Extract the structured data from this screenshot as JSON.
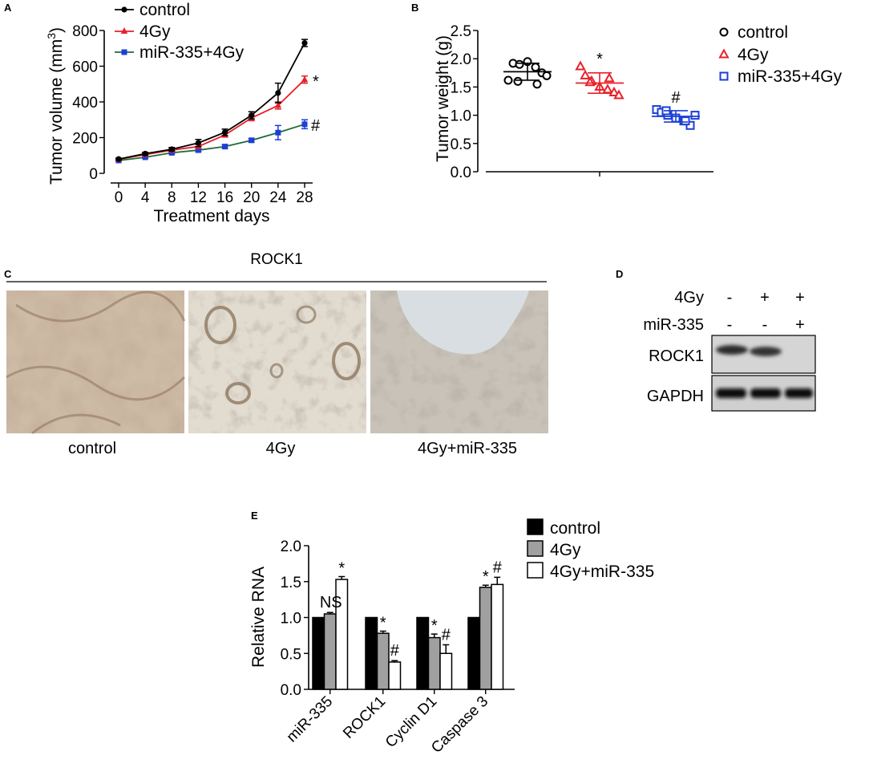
{
  "panels": {
    "A": {
      "label": "A"
    },
    "B": {
      "label": "B"
    },
    "C": {
      "label": "C",
      "title": "ROCK1",
      "images": [
        {
          "caption": "control"
        },
        {
          "caption": "4Gy"
        },
        {
          "caption": "4Gy+miR-335"
        }
      ]
    },
    "D": {
      "label": "D",
      "rows": [
        {
          "label": "4Gy",
          "signs": [
            "-",
            "+",
            "+"
          ]
        },
        {
          "label": "miR-335",
          "signs": [
            "-",
            "-",
            "+"
          ]
        }
      ],
      "bands": [
        {
          "label": "ROCK1",
          "intensity": [
            0.9,
            0.85,
            0.0
          ]
        },
        {
          "label": "GAPDH",
          "intensity": [
            1.0,
            1.0,
            1.0
          ]
        }
      ]
    },
    "E": {
      "label": "E"
    }
  },
  "colors": {
    "control": "#000000",
    "4Gy": "#e8202a",
    "mir4gy": "#1c3fd6",
    "bar_4gy": "#a0a0a0",
    "line_green": "#1e6b3a"
  },
  "chart_data": [
    {
      "id": "A",
      "type": "line",
      "xlabel": "Treatment days",
      "ylabel": "Tumor volume (mm³)",
      "ylabel_main": "Tumor volume (mm",
      "ylabel_sup": "3",
      "ylabel_close": ")",
      "x": [
        0,
        4,
        8,
        12,
        16,
        20,
        24,
        28
      ],
      "xticks": [
        "0",
        "4",
        "8",
        "12",
        "16",
        "20",
        "24",
        "28"
      ],
      "yticks": [
        "0",
        "200",
        "400",
        "600",
        "800"
      ],
      "ylim": [
        0,
        800
      ],
      "legend_position": "top-left",
      "series": [
        {
          "name": "control",
          "values": [
            80,
            110,
            135,
            170,
            230,
            325,
            450,
            730
          ],
          "err": [
            5,
            8,
            10,
            20,
            18,
            20,
            55,
            20
          ]
        },
        {
          "name": "4Gy",
          "values": [
            78,
            105,
            130,
            150,
            215,
            310,
            380,
            525
          ],
          "err": [
            5,
            6,
            8,
            10,
            12,
            15,
            20,
            20
          ]
        },
        {
          "name": "miR-335+4Gy",
          "values": [
            72,
            90,
            115,
            130,
            150,
            185,
            228,
            275
          ],
          "err": [
            4,
            5,
            6,
            8,
            10,
            10,
            40,
            25
          ]
        }
      ],
      "annotations": [
        {
          "text": "*",
          "series": "4Gy"
        },
        {
          "text": "#",
          "series": "miR-335+4Gy"
        }
      ]
    },
    {
      "id": "B",
      "type": "scatter",
      "ylabel": "Tumor weight (g)",
      "yticks": [
        "0.0",
        "0.5",
        "1.0",
        "1.5",
        "2.0",
        "2.5"
      ],
      "ylim": [
        0,
        2.5
      ],
      "legend_position": "right",
      "series": [
        {
          "name": "control",
          "points": [
            1.62,
            1.92,
            1.9,
            1.95,
            1.85,
            1.75,
            1.7,
            1.6,
            1.55
          ],
          "mean": 1.77,
          "sd": 0.15
        },
        {
          "name": "4Gy",
          "points": [
            1.86,
            1.7,
            1.6,
            1.5,
            1.45,
            1.4,
            1.35,
            1.58,
            1.65
          ],
          "mean": 1.57,
          "sd": 0.18
        },
        {
          "name": "miR-335+4Gy",
          "points": [
            1.1,
            1.05,
            1.0,
            0.95,
            0.9,
            0.82,
            1.0,
            1.08,
            0.9
          ],
          "mean": 0.98,
          "sd": 0.1
        }
      ],
      "annotations": [
        {
          "text": "*",
          "series": "4Gy"
        },
        {
          "text": "#",
          "series": "miR-335+4Gy"
        }
      ]
    },
    {
      "id": "E",
      "type": "bar",
      "ylabel": "Relative RNA",
      "categories": [
        "miR-335",
        "ROCK1",
        "Cyclin D1",
        "Caspase 3"
      ],
      "yticks": [
        "0.0",
        "0.5",
        "1.0",
        "1.5",
        "2.0"
      ],
      "ylim": [
        0,
        2.0
      ],
      "legend_position": "top-right",
      "series": [
        {
          "name": "control",
          "values": [
            1.0,
            1.0,
            1.0,
            1.0
          ],
          "err": [
            0,
            0,
            0,
            0
          ]
        },
        {
          "name": "4Gy",
          "values": [
            1.05,
            0.78,
            0.72,
            1.42
          ],
          "err": [
            0.02,
            0.03,
            0.05,
            0.03
          ]
        },
        {
          "name": "4Gy+miR-335",
          "values": [
            1.53,
            0.38,
            0.5,
            1.46
          ],
          "err": [
            0.04,
            0.02,
            0.12,
            0.1
          ]
        }
      ],
      "annotations": [
        {
          "category": 0,
          "series": 1,
          "text": "NS"
        },
        {
          "category": 0,
          "series": 2,
          "text": "*"
        },
        {
          "category": 1,
          "series": 1,
          "text": "*"
        },
        {
          "category": 1,
          "series": 2,
          "text": "#"
        },
        {
          "category": 2,
          "series": 1,
          "text": "*"
        },
        {
          "category": 2,
          "series": 2,
          "text": "#"
        },
        {
          "category": 3,
          "series": 1,
          "text": "*"
        },
        {
          "category": 3,
          "series": 2,
          "text": "#"
        }
      ]
    }
  ]
}
